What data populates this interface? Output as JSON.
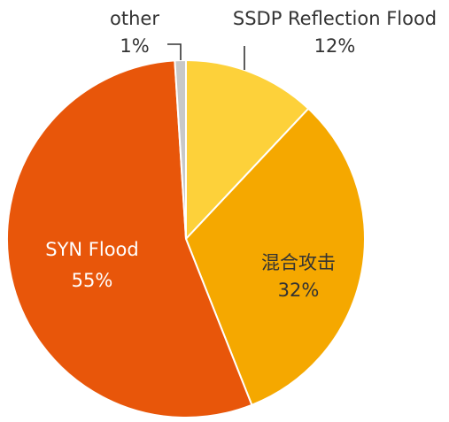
{
  "chart_data": {
    "type": "pie",
    "slices": [
      {
        "label": "SSDP Reflection Flood",
        "value_label": "12%",
        "value": 12,
        "color": "#FDD13A",
        "text_color": "#333333"
      },
      {
        "label": "混合攻击",
        "value_label": "32%",
        "value": 32,
        "color": "#F5A800",
        "text_color": "#333333"
      },
      {
        "label": "SYN Flood",
        "value_label": "55%",
        "value": 55,
        "color": "#E8560A",
        "text_color": "#ffffff"
      },
      {
        "label": "other",
        "value_label": "1%",
        "value": 1,
        "color": "#C8C8C8",
        "text_color": "#333333"
      }
    ]
  }
}
